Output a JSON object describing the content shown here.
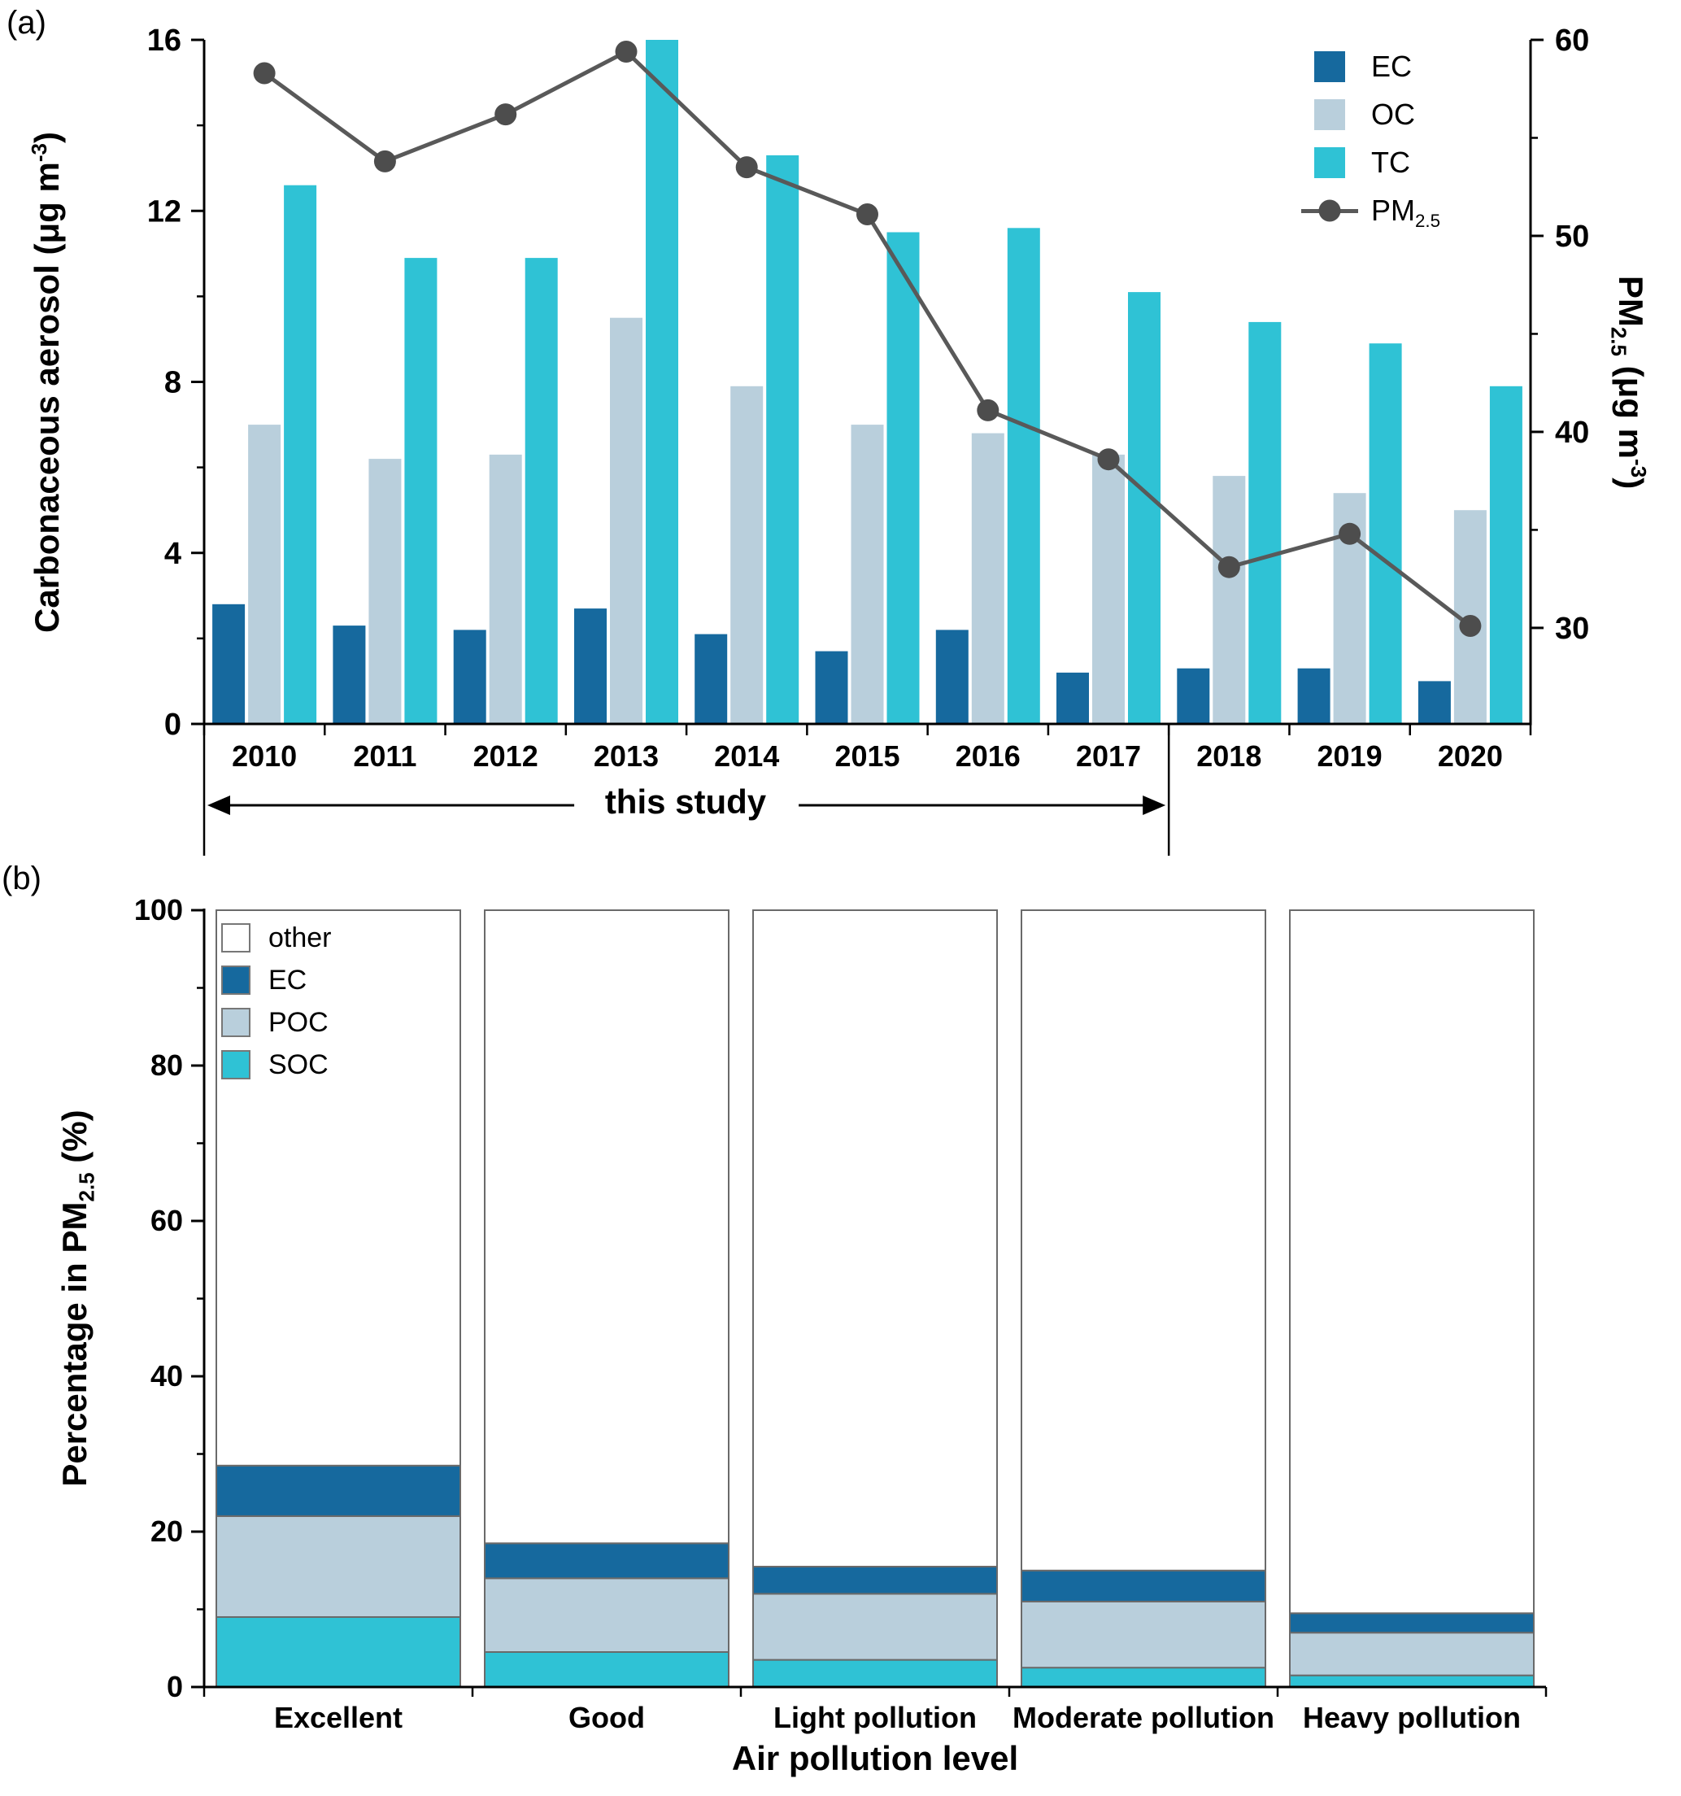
{
  "figure": {
    "panel_a_label": "(a)",
    "panel_b_label": "(b)"
  },
  "chart_data": [
    {
      "type": "bar+line",
      "panel": "a",
      "categories": [
        "2010",
        "2011",
        "2012",
        "2013",
        "2014",
        "2015",
        "2016",
        "2017",
        "2018",
        "2019",
        "2020"
      ],
      "ylabel_left_parts": [
        "Carbonaceous aerosol (μg m",
        "-3",
        ")"
      ],
      "ylabel_right_parts": {
        "p1": "PM",
        "sub": "2.5",
        "p2": " (μg m",
        "sup": "-3",
        "p3": ")"
      },
      "ylim_left": [
        0,
        16
      ],
      "yticks_left": [
        0,
        4,
        8,
        12,
        16
      ],
      "yticks_left_minor": [
        2,
        6,
        10,
        14
      ],
      "ylim_right": [
        25.1,
        60
      ],
      "yticks_right": [
        30,
        40,
        50,
        60
      ],
      "yticks_right_minor": [
        35,
        45,
        55
      ],
      "grid": false,
      "legend_position": "top-right",
      "series": [
        {
          "name": "EC",
          "color": "#16699e",
          "values": [
            2.8,
            2.3,
            2.2,
            2.7,
            2.1,
            1.7,
            2.2,
            1.2,
            1.3,
            1.3,
            1.0
          ]
        },
        {
          "name": "OC",
          "color": "#b9cfdc",
          "values": [
            7.0,
            6.2,
            6.3,
            9.5,
            7.9,
            7.0,
            6.8,
            6.3,
            5.8,
            5.4,
            5.0
          ]
        },
        {
          "name": "TC",
          "color": "#2fc2d5",
          "values": [
            12.6,
            10.9,
            10.9,
            16.0,
            13.3,
            11.5,
            11.6,
            10.1,
            9.4,
            8.9,
            7.9
          ]
        }
      ],
      "line_series": {
        "label_base": "PM",
        "label_sub": "2.5",
        "axis": "right",
        "color": "#595959",
        "marker_color": "#4d4d4d",
        "values": [
          58.3,
          53.8,
          56.2,
          59.4,
          53.5,
          51.1,
          41.1,
          38.6,
          33.1,
          34.8,
          30.1
        ]
      },
      "annotation": {
        "text": "this study",
        "start_category": "2010",
        "end_category": "2017"
      }
    },
    {
      "type": "stacked-bar",
      "panel": "b",
      "categories": [
        "Excellent",
        "Good",
        "Light pollution",
        "Moderate pollution",
        "Heavy pollution"
      ],
      "xlabel": "Air pollution level",
      "ylabel_parts": {
        "p1": "Percentage in PM",
        "sub": "2.5",
        "p2": " (%)"
      },
      "ylim": [
        0,
        100
      ],
      "yticks": [
        0,
        20,
        40,
        60,
        80,
        100
      ],
      "yticks_minor": [
        10,
        30,
        50,
        70,
        90
      ],
      "grid": false,
      "legend_position": "top-left-inside",
      "series": [
        {
          "name": "SOC",
          "color": "#2fc2d5",
          "values": [
            9.0,
            4.5,
            3.5,
            2.5,
            1.5
          ]
        },
        {
          "name": "POC",
          "color": "#b9cfdc",
          "values": [
            13.0,
            9.5,
            8.5,
            8.5,
            5.5
          ]
        },
        {
          "name": "EC",
          "color": "#16699e",
          "values": [
            6.5,
            4.5,
            3.5,
            4.0,
            2.5
          ]
        },
        {
          "name": "other",
          "color": "#ffffff",
          "values": [
            71.5,
            81.5,
            84.5,
            85.0,
            90.5
          ]
        }
      ],
      "legend_labels": [
        "other",
        "EC",
        "POC",
        "SOC"
      ]
    }
  ]
}
